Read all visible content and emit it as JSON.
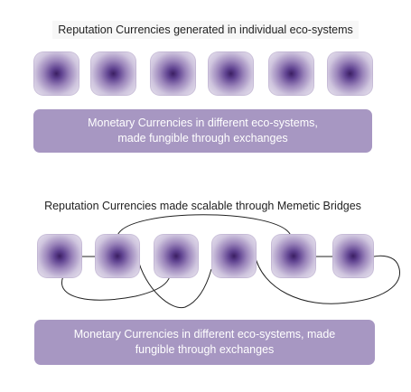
{
  "top_section": {
    "title": "Reputation Currencies generated in individual eco-systems",
    "banner_line1": "Monetary Currencies in different eco-systems,",
    "banner_line2": "made fungible through exchanges"
  },
  "bottom_section": {
    "title": "Reputation Currencies made scalable through Memetic Bridges",
    "banner_line1": "Monetary Currencies in different eco-systems, made",
    "banner_line2": "fungible through exchanges"
  },
  "colors": {
    "banner": "#a797c2",
    "node_center": "#3b1f62",
    "link": "#222222"
  }
}
